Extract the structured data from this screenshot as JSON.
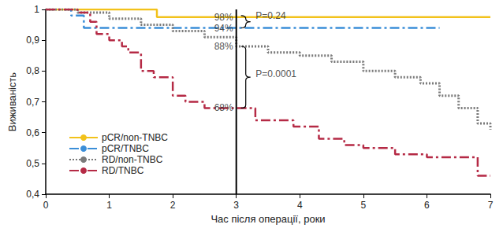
{
  "chart_data": {
    "type": "step",
    "x_label": "Час після операції, роки",
    "y_label": "Виживаність",
    "xlim": [
      0,
      7
    ],
    "xticks": [
      0,
      1,
      2,
      3,
      4,
      5,
      6,
      7
    ],
    "ylim": [
      0.4,
      1
    ],
    "yticks": [
      {
        "value": 0.4,
        "label": "0,4"
      },
      {
        "value": 0.5,
        "label": "0,5"
      },
      {
        "value": 0.6,
        "label": "0,6"
      },
      {
        "value": 0.7,
        "label": "0,7"
      },
      {
        "value": 0.8,
        "label": "0,8"
      },
      {
        "value": 0.9,
        "label": "0,9"
      },
      1
    ],
    "grid": false,
    "legend": "lower left",
    "vlines": [
      3
    ],
    "series": [
      {
        "name": "pCR/non-TNBC",
        "color": "#f2c21b",
        "line_style": "solid",
        "x": [
          0,
          1.75,
          7
        ],
        "values": [
          1,
          0.975,
          0.975
        ]
      },
      {
        "name": "pCR/TNBC",
        "color": "#3b8ed8",
        "line_style": "dashdot",
        "x": [
          0,
          0.4,
          0.6,
          6.2
        ],
        "values": [
          1,
          0.98,
          0.94,
          0.94
        ]
      },
      {
        "name": "RD/non-TNBC",
        "color": "#7a7a7a",
        "line_style": "dotted",
        "x": [
          0,
          0.5,
          1,
          1.5,
          2,
          2.5,
          3,
          3.5,
          4,
          4.5,
          5,
          5.5,
          5.9,
          6.2,
          6.5,
          6.8,
          7
        ],
        "values": [
          1,
          0.99,
          0.97,
          0.95,
          0.93,
          0.91,
          0.88,
          0.86,
          0.85,
          0.83,
          0.8,
          0.78,
          0.76,
          0.72,
          0.68,
          0.63,
          0.61
        ]
      },
      {
        "name": "RD/TNBC",
        "color": "#b52a45",
        "line_style": "dashdot",
        "x": [
          0,
          0.5,
          0.7,
          0.8,
          1,
          1.2,
          1.3,
          1.5,
          1.7,
          2,
          2.2,
          2.5,
          3.3,
          3.9,
          4.3,
          4.7,
          5,
          5.5,
          6,
          6.8,
          7
        ],
        "values": [
          1,
          0.99,
          0.96,
          0.92,
          0.9,
          0.88,
          0.86,
          0.8,
          0.78,
          0.72,
          0.7,
          0.68,
          0.64,
          0.62,
          0.58,
          0.56,
          0.55,
          0.53,
          0.52,
          0.46,
          0.46
        ]
      }
    ],
    "annotations": [
      {
        "text": "98%",
        "x": 3,
        "y": 0.975
      },
      {
        "text": "94%",
        "x": 3,
        "y": 0.94
      },
      {
        "text": "88%",
        "x": 3,
        "y": 0.88
      },
      {
        "text": "68%",
        "x": 3,
        "y": 0.68
      },
      {
        "text": "P=0.24",
        "x": 3.28,
        "y": 0.98,
        "bracket": [
          0.94,
          0.98
        ]
      },
      {
        "text": "P=0.0001",
        "x": 3.28,
        "y": 0.79,
        "bracket": [
          0.68,
          0.88
        ]
      }
    ]
  }
}
